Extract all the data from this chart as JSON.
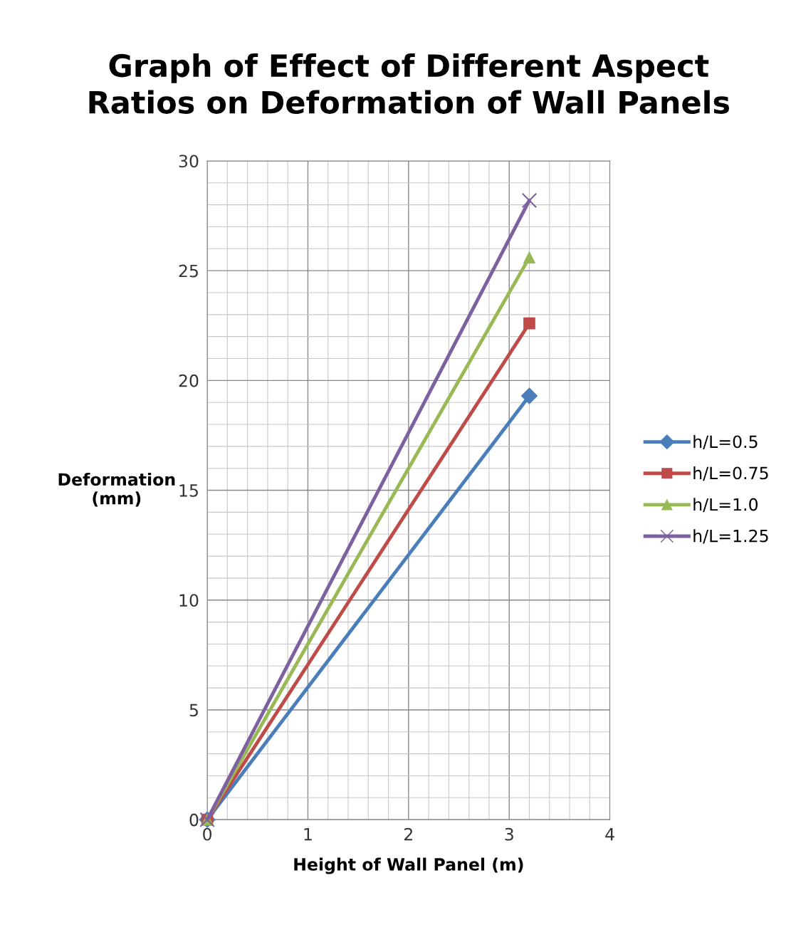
{
  "chart_data": {
    "type": "line",
    "title": "Graph of Effect of Different Aspect\nRatios on Deformation of Wall Panels",
    "xlabel": "Height of Wall Panel (m)",
    "ylabel": "Deformation\n(mm)",
    "x": [
      0,
      3.2
    ],
    "series": [
      {
        "name": "h/L=0.5",
        "color": "#4a7ebb",
        "marker": "diamond",
        "values": [
          0,
          19.3
        ]
      },
      {
        "name": "h/L=0.75",
        "color": "#be4b48",
        "marker": "square",
        "values": [
          0,
          22.6
        ]
      },
      {
        "name": "h/L=1.0",
        "color": "#98b954",
        "marker": "triangle",
        "values": [
          0,
          25.6
        ]
      },
      {
        "name": "h/L=1.25",
        "color": "#7d60a0",
        "marker": "cross",
        "values": [
          0,
          28.2
        ]
      }
    ],
    "xlim": [
      0,
      4
    ],
    "xticks": [
      0,
      1,
      2,
      3,
      4
    ],
    "ylim": [
      0,
      30
    ],
    "yticks": [
      0,
      5,
      10,
      15,
      20,
      25,
      30
    ],
    "grid": true,
    "legend": "right",
    "line_style": "solid"
  }
}
